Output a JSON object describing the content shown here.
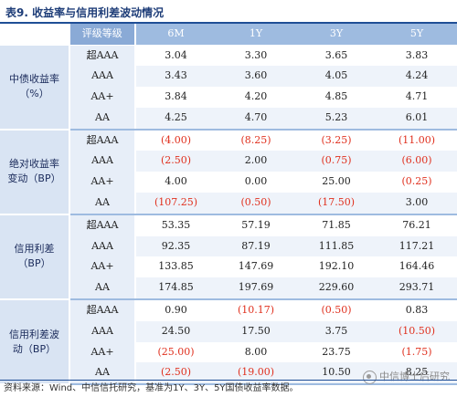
{
  "title": "表9. 收益率与信用利差波动情况",
  "header": {
    "grade_label": "评级等级",
    "columns": [
      "6M",
      "1Y",
      "3Y",
      "5Y"
    ]
  },
  "groups": [
    {
      "label": "中债收益率（%）",
      "rows": [
        {
          "grade": "超AAA",
          "values": [
            "3.04",
            "3.30",
            "3.65",
            "3.83"
          ]
        },
        {
          "grade": "AAA",
          "values": [
            "3.43",
            "3.60",
            "4.05",
            "4.24"
          ]
        },
        {
          "grade": "AA+",
          "values": [
            "3.84",
            "4.20",
            "4.85",
            "4.71"
          ]
        },
        {
          "grade": "AA",
          "values": [
            "4.25",
            "4.70",
            "5.23",
            "6.01"
          ]
        }
      ]
    },
    {
      "label": "绝对收益率变动（BP）",
      "rows": [
        {
          "grade": "超AAA",
          "values": [
            "(4.00)",
            "(8.25)",
            "(3.25)",
            "(11.00)"
          ]
        },
        {
          "grade": "AAA",
          "values": [
            "(2.50)",
            "2.00",
            "(0.75)",
            "(6.00)"
          ]
        },
        {
          "grade": "AA+",
          "values": [
            "4.00",
            "0.00",
            "25.00",
            "(0.25)"
          ]
        },
        {
          "grade": "AA",
          "values": [
            "(107.25)",
            "(0.50)",
            "(17.50)",
            "3.00"
          ]
        }
      ]
    },
    {
      "label": "信用利差（BP）",
      "rows": [
        {
          "grade": "超AAA",
          "values": [
            "53.35",
            "57.19",
            "71.85",
            "76.21"
          ]
        },
        {
          "grade": "AAA",
          "values": [
            "92.35",
            "87.19",
            "111.85",
            "117.21"
          ]
        },
        {
          "grade": "AA+",
          "values": [
            "133.85",
            "147.69",
            "192.10",
            "164.46"
          ]
        },
        {
          "grade": "AA",
          "values": [
            "174.85",
            "197.69",
            "229.60",
            "293.71"
          ]
        }
      ]
    },
    {
      "label": "信用利差波动（BP）",
      "rows": [
        {
          "grade": "超AAA",
          "values": [
            "0.90",
            "(10.17)",
            "(0.50)",
            "0.83"
          ]
        },
        {
          "grade": "AAA",
          "values": [
            "24.50",
            "17.50",
            "3.75",
            "(10.50)"
          ]
        },
        {
          "grade": "AA+",
          "values": [
            "(25.00)",
            "8.00",
            "23.75",
            "(1.75)"
          ]
        },
        {
          "grade": "AA",
          "values": [
            "(2.50)",
            "(19.00)",
            "10.50",
            "8.25"
          ]
        }
      ]
    }
  ],
  "source": "资料来源：Wind、中信信托研究，基准为1Y、3Y、5Y国债收益率数据。",
  "watermark": "中信博士后研究",
  "colors": {
    "negative": "#e0301e",
    "header_bg": "#9ebbe0",
    "group_bg": "#d9e4f3",
    "rule": "#1f4e96"
  }
}
